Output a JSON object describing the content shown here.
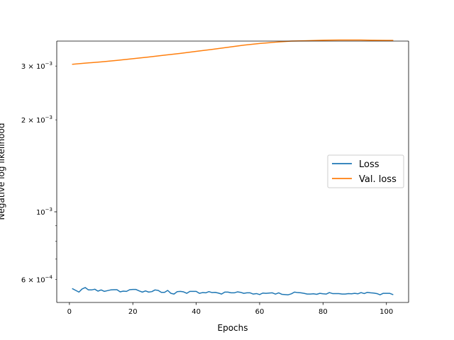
{
  "chart_data": {
    "type": "line",
    "title": "",
    "xlabel": "Epochs",
    "ylabel": "Negative log likelihood",
    "yscale": "log",
    "xlim": [
      -4,
      107
    ],
    "ylim": [
      0.000505,
      0.00362
    ],
    "x_ticks": [
      0,
      20,
      40,
      60,
      80,
      100
    ],
    "x_tick_labels": [
      "0",
      "20",
      "40",
      "60",
      "80",
      "100"
    ],
    "y_major_ticks": [
      0.001
    ],
    "y_minor_ticks": [
      0.0006,
      0.002,
      0.003
    ],
    "y_tick_labels": [
      {
        "value": 0.0006,
        "mantissa": "6",
        "exponent": "−4"
      },
      {
        "value": 0.001,
        "mantissa": "",
        "exponent": "−3"
      },
      {
        "value": 0.002,
        "mantissa": "2",
        "exponent": "−3"
      },
      {
        "value": 0.003,
        "mantissa": "3",
        "exponent": "−3"
      }
    ],
    "grid": false,
    "legend_position": "center-right",
    "series": [
      {
        "name": "Loss",
        "color": "#1f77b4",
        "x": [
          1,
          2,
          3,
          4,
          5,
          6,
          7,
          8,
          9,
          10,
          11,
          12,
          13,
          14,
          15,
          16,
          17,
          18,
          19,
          20,
          21,
          22,
          23,
          24,
          25,
          26,
          27,
          28,
          29,
          30,
          31,
          32,
          33,
          34,
          35,
          36,
          37,
          38,
          39,
          40,
          41,
          42,
          43,
          44,
          45,
          46,
          47,
          48,
          49,
          50,
          51,
          52,
          53,
          54,
          55,
          56,
          57,
          58,
          59,
          60,
          61,
          62,
          63,
          64,
          65,
          66,
          67,
          68,
          69,
          70,
          71,
          72,
          73,
          74,
          75,
          76,
          77,
          78,
          79,
          80,
          81,
          82,
          83,
          84,
          85,
          86,
          87,
          88,
          89,
          90,
          91,
          92,
          93,
          94,
          95,
          96,
          97,
          98,
          99,
          100,
          101,
          102
        ],
        "values": [
          0.00056,
          0.000553,
          0.000546,
          0.000559,
          0.000565,
          0.000555,
          0.000555,
          0.000558,
          0.00055,
          0.000555,
          0.000549,
          0.000552,
          0.000555,
          0.000556,
          0.000556,
          0.000547,
          0.00055,
          0.000549,
          0.000556,
          0.000557,
          0.000557,
          0.000551,
          0.000546,
          0.000551,
          0.000546,
          0.000548,
          0.000555,
          0.000553,
          0.000545,
          0.000545,
          0.000553,
          0.000541,
          0.000538,
          0.000548,
          0.000549,
          0.000547,
          0.000541,
          0.000549,
          0.000549,
          0.000549,
          0.000541,
          0.000544,
          0.000543,
          0.000548,
          0.000544,
          0.000545,
          0.000542,
          0.000538,
          0.000546,
          0.000546,
          0.000543,
          0.000543,
          0.000547,
          0.000545,
          0.000541,
          0.000543,
          0.000543,
          0.000538,
          0.00054,
          0.000536,
          0.000542,
          0.000541,
          0.000542,
          0.000543,
          0.000538,
          0.000543,
          0.000537,
          0.000536,
          0.000535,
          0.000539,
          0.000546,
          0.000544,
          0.000543,
          0.000541,
          0.000538,
          0.000538,
          0.000539,
          0.000537,
          0.000541,
          0.000539,
          0.000538,
          0.000544,
          0.00054,
          0.00054,
          0.00054,
          0.000538,
          0.000538,
          0.00054,
          0.000539,
          0.000541,
          0.000539,
          0.000544,
          0.00054,
          0.000545,
          0.000543,
          0.000542,
          0.00054,
          0.000535,
          0.000541,
          0.000541,
          0.000541,
          0.000536
        ]
      },
      {
        "name": "Val. loss",
        "color": "#ff7f0e",
        "x": [
          1,
          5,
          10,
          15,
          20,
          25,
          30,
          35,
          40,
          45,
          50,
          55,
          60,
          65,
          70,
          75,
          80,
          85,
          90,
          95,
          100,
          102
        ],
        "values": [
          0.00304,
          0.003065,
          0.003095,
          0.00313,
          0.00317,
          0.00321,
          0.003255,
          0.0033,
          0.00335,
          0.0034,
          0.003455,
          0.00351,
          0.003555,
          0.00359,
          0.00362,
          0.00363,
          0.003645,
          0.00365,
          0.00365,
          0.003645,
          0.00364,
          0.00364
        ]
      }
    ]
  }
}
